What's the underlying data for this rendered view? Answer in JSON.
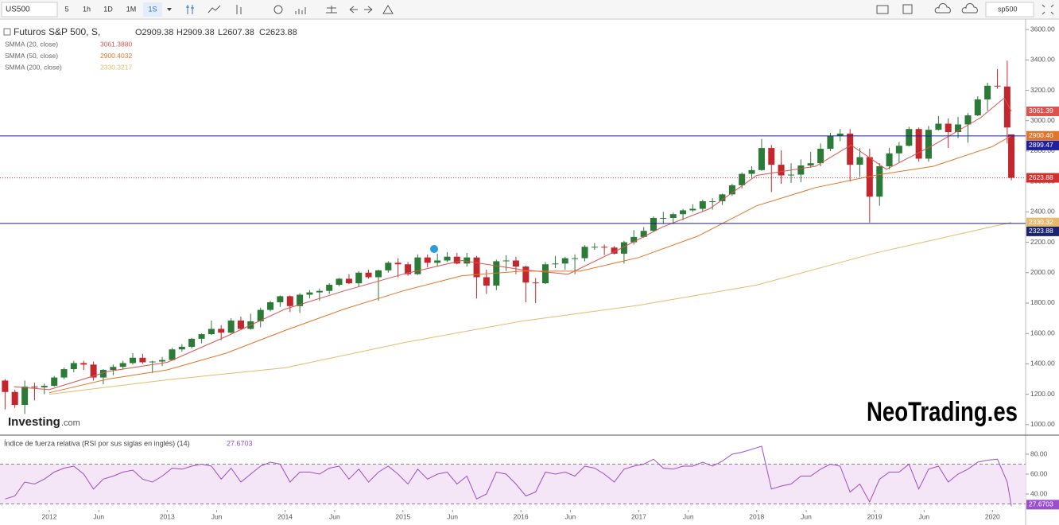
{
  "toolbar": {
    "symbol": "US500",
    "intervals": [
      "5",
      "1h",
      "1D",
      "1M",
      "1S"
    ],
    "search": "sp500"
  },
  "watermarks": {
    "brand": "Investing",
    "brand_suffix": ".com",
    "site": "NeoTrading.es"
  },
  "chart_data": [
    {
      "type": "candlestick",
      "title": "Futuros S&P 500, S,",
      "ohlc_text": [
        "O2909.38",
        "H2909.38",
        "L2607.38",
        "C2623.88"
      ],
      "x": [
        2011.625,
        2011.708,
        2011.792,
        2011.875,
        2011.958,
        2012.042,
        2012.125,
        2012.208,
        2012.292,
        2012.375,
        2012.458,
        2012.542,
        2012.625,
        2012.708,
        2012.792,
        2012.875,
        2012.958,
        2013.042,
        2013.125,
        2013.208,
        2013.292,
        2013.375,
        2013.458,
        2013.542,
        2013.625,
        2013.708,
        2013.792,
        2013.875,
        2013.958,
        2014.042,
        2014.125,
        2014.208,
        2014.292,
        2014.375,
        2014.458,
        2014.542,
        2014.625,
        2014.708,
        2014.792,
        2014.875,
        2014.958,
        2015.042,
        2015.125,
        2015.208,
        2015.292,
        2015.375,
        2015.458,
        2015.542,
        2015.625,
        2015.708,
        2015.792,
        2015.875,
        2015.958,
        2016.042,
        2016.125,
        2016.208,
        2016.292,
        2016.375,
        2016.458,
        2016.542,
        2016.625,
        2016.708,
        2016.792,
        2016.875,
        2016.958,
        2017.042,
        2017.125,
        2017.208,
        2017.292,
        2017.375,
        2017.458,
        2017.542,
        2017.625,
        2017.708,
        2017.792,
        2017.875,
        2017.958,
        2018.042,
        2018.125,
        2018.208,
        2018.292,
        2018.375,
        2018.458,
        2018.542,
        2018.625,
        2018.708,
        2018.792,
        2018.875,
        2018.958,
        2019.042,
        2019.125,
        2019.208,
        2019.292,
        2019.375,
        2019.458,
        2019.542,
        2019.625,
        2019.708,
        2019.792,
        2019.875,
        2019.958,
        2020.042,
        2020.125,
        2020.16
      ],
      "open": [
        1290,
        1215,
        1130,
        1250,
        1245,
        1255,
        1310,
        1365,
        1405,
        1395,
        1310,
        1360,
        1380,
        1405,
        1440,
        1410,
        1415,
        1425,
        1495,
        1512,
        1565,
        1595,
        1630,
        1605,
        1685,
        1630,
        1680,
        1755,
        1805,
        1845,
        1780,
        1855,
        1870,
        1880,
        1920,
        1960,
        1930,
        2000,
        1970,
        2015,
        2065,
        2055,
        1990,
        2100,
        2065,
        2080,
        2105,
        2060,
        2100,
        1970,
        1915,
        2075,
        2080,
        2040,
        1935,
        1930,
        2055,
        2060,
        2095,
        2095,
        2170,
        2170,
        2165,
        2125,
        2200,
        2235,
        2275,
        2360,
        2360,
        2385,
        2410,
        2420,
        2470,
        2470,
        2515,
        2575,
        2650,
        2675,
        2820,
        2710,
        2640,
        2645,
        2705,
        2720,
        2815,
        2900,
        2915,
        2710,
        2760,
        2500,
        2700,
        2785,
        2835,
        2945,
        2750,
        2940,
        2980,
        2925,
        2975,
        3035,
        3140,
        3230,
        3225,
        2909.38
      ],
      "high": [
        1300,
        1230,
        1290,
        1275,
        1270,
        1320,
        1375,
        1420,
        1420,
        1415,
        1365,
        1395,
        1420,
        1470,
        1465,
        1420,
        1445,
        1505,
        1530,
        1570,
        1600,
        1685,
        1655,
        1700,
        1710,
        1730,
        1770,
        1815,
        1850,
        1850,
        1865,
        1885,
        1895,
        1930,
        1965,
        1990,
        2010,
        2020,
        2020,
        2075,
        2095,
        2070,
        2120,
        2120,
        2125,
        2135,
        2130,
        2130,
        2110,
        2020,
        2085,
        2115,
        2105,
        2045,
        1965,
        2070,
        2110,
        2105,
        2120,
        2180,
        2195,
        2185,
        2175,
        2210,
        2280,
        2300,
        2370,
        2400,
        2395,
        2420,
        2450,
        2480,
        2490,
        2520,
        2585,
        2660,
        2700,
        2880,
        2840,
        2805,
        2720,
        2745,
        2795,
        2850,
        2920,
        2945,
        2945,
        2820,
        2815,
        2720,
        2820,
        2860,
        2960,
        2955,
        2965,
        3030,
        3015,
        3025,
        3050,
        3160,
        3250,
        3340,
        3395,
        2909.38
      ],
      "low": [
        1100,
        1110,
        1070,
        1160,
        1200,
        1250,
        1300,
        1345,
        1360,
        1290,
        1265,
        1325,
        1365,
        1395,
        1400,
        1340,
        1385,
        1420,
        1480,
        1500,
        1535,
        1590,
        1555,
        1600,
        1625,
        1625,
        1640,
        1745,
        1775,
        1740,
        1735,
        1830,
        1815,
        1860,
        1910,
        1925,
        1905,
        1960,
        1815,
        2000,
        1970,
        1980,
        1985,
        2035,
        2040,
        2070,
        2055,
        2040,
        1830,
        1860,
        1885,
        2010,
        1990,
        1805,
        1800,
        1925,
        2030,
        2020,
        1990,
        2075,
        2150,
        2115,
        2120,
        2060,
        2185,
        2230,
        2270,
        2320,
        2320,
        2345,
        2400,
        2405,
        2415,
        2445,
        2505,
        2555,
        2625,
        2670,
        2530,
        2585,
        2590,
        2595,
        2690,
        2700,
        2800,
        2865,
        2600,
        2630,
        2330,
        2440,
        2680,
        2725,
        2830,
        2730,
        2730,
        2935,
        2820,
        2885,
        2855,
        3030,
        3065,
        3210,
        2850,
        2607.38
      ],
      "close": [
        1215,
        1130,
        1250,
        1245,
        1255,
        1310,
        1365,
        1405,
        1395,
        1310,
        1360,
        1380,
        1405,
        1440,
        1410,
        1415,
        1425,
        1495,
        1512,
        1565,
        1595,
        1630,
        1605,
        1685,
        1630,
        1680,
        1755,
        1805,
        1845,
        1780,
        1855,
        1870,
        1880,
        1920,
        1960,
        1930,
        2000,
        1970,
        2015,
        2065,
        2055,
        1990,
        2100,
        2065,
        2080,
        2105,
        2060,
        2100,
        1970,
        1915,
        2075,
        2080,
        2040,
        1935,
        1930,
        2055,
        2060,
        2095,
        2095,
        2170,
        2170,
        2165,
        2125,
        2200,
        2235,
        2275,
        2360,
        2360,
        2385,
        2410,
        2420,
        2470,
        2470,
        2515,
        2575,
        2650,
        2675,
        2820,
        2710,
        2640,
        2645,
        2705,
        2720,
        2815,
        2900,
        2915,
        2710,
        2760,
        2500,
        2700,
        2785,
        2835,
        2945,
        2750,
        2940,
        2980,
        2925,
        2975,
        3035,
        3140,
        3230,
        3225,
        2955,
        2623.88
      ],
      "up_color": "#2b7a37",
      "down_color": "#c3272d",
      "price_tag": {
        "value": 2623.88,
        "label": "2623.88",
        "color": "#d32f2f"
      },
      "overlays": [
        {
          "name": "SMMA (20, close)",
          "color": "#d9534f",
          "value_label": "3061.3880",
          "tag": "3061.39",
          "x": [
            2011.7,
            2012.0,
            2012.5,
            2013.0,
            2013.5,
            2014.0,
            2014.5,
            2015.0,
            2015.5,
            2016.0,
            2016.4,
            2016.8,
            2017.2,
            2017.6,
            2018.0,
            2018.5,
            2018.8,
            2019.1,
            2019.5,
            2019.9,
            2020.1,
            2020.16
          ],
          "values": [
            1250,
            1230,
            1350,
            1410,
            1580,
            1760,
            1880,
            1990,
            2080,
            2020,
            1990,
            2140,
            2300,
            2420,
            2640,
            2700,
            2840,
            2680,
            2840,
            3020,
            3150,
            3061.388
          ]
        },
        {
          "name": "SMMA (50, close)",
          "color": "#e0762a",
          "value_label": "2900.4032",
          "tag": "2900.40",
          "x": [
            2012.0,
            2012.5,
            2013.0,
            2013.5,
            2014.0,
            2014.5,
            2015.0,
            2015.5,
            2016.0,
            2016.5,
            2017.0,
            2017.5,
            2018.0,
            2018.5,
            2019.0,
            2019.5,
            2020.0,
            2020.16
          ],
          "values": [
            1210,
            1300,
            1360,
            1470,
            1620,
            1760,
            1880,
            1980,
            2010,
            2010,
            2100,
            2240,
            2440,
            2560,
            2640,
            2700,
            2830,
            2900.4032
          ]
        },
        {
          "name": "SMMA (200, close)",
          "color": "#e8b96a",
          "value_label": "2330.3217",
          "tag": "2330.32",
          "x": [
            2012.0,
            2013.0,
            2014.0,
            2015.0,
            2016.0,
            2017.0,
            2018.0,
            2019.0,
            2020.0,
            2020.16
          ],
          "values": [
            1200,
            1295,
            1374,
            1538,
            1680,
            1786,
            1918,
            2128,
            2303,
            2330.3217
          ]
        }
      ],
      "hlines": [
        {
          "value": 2899.47,
          "label": "2899.47",
          "color": "#1f1fa0"
        },
        {
          "value": 2323.88,
          "label": "2323.88",
          "color": "#1a2370"
        }
      ],
      "xlim": [
        2011.582,
        2020.281
      ],
      "ylim": [
        931,
        3658
      ],
      "yticks": [
        {
          "value": 1000,
          "label": "1000.00"
        },
        {
          "value": 1200,
          "label": "1200.00"
        },
        {
          "value": 1400,
          "label": "1400.00"
        },
        {
          "value": 1600,
          "label": "1600.00"
        },
        {
          "value": 1800,
          "label": "1800.00"
        },
        {
          "value": 2000,
          "label": "2000.00"
        },
        {
          "value": 2200,
          "label": "2200.00"
        },
        {
          "value": 2400,
          "label": "2400.00"
        },
        {
          "value": 2600,
          "label": "2600.00"
        },
        {
          "value": 2800,
          "label": "2800.00"
        },
        {
          "value": 3000,
          "label": "3000.00"
        },
        {
          "value": 3200,
          "label": "3200.00"
        },
        {
          "value": 3400,
          "label": "3400.00"
        },
        {
          "value": 3600,
          "label": "3600.00"
        }
      ]
    },
    {
      "type": "line",
      "title": "Índice de fuerza relativa (RSI por sus siglas en inglés) (14)",
      "value_label": "27.6703",
      "color": "#9c4dcc",
      "band": [
        30,
        70
      ],
      "band_color": "#f4e6f7",
      "x": [
        2011.625,
        2011.708,
        2011.792,
        2011.875,
        2011.958,
        2012.042,
        2012.125,
        2012.208,
        2012.292,
        2012.375,
        2012.458,
        2012.542,
        2012.625,
        2012.708,
        2012.792,
        2012.875,
        2012.958,
        2013.042,
        2013.125,
        2013.208,
        2013.292,
        2013.375,
        2013.458,
        2013.542,
        2013.625,
        2013.708,
        2013.792,
        2013.875,
        2013.958,
        2014.042,
        2014.125,
        2014.208,
        2014.292,
        2014.375,
        2014.458,
        2014.542,
        2014.625,
        2014.708,
        2014.792,
        2014.875,
        2014.958,
        2015.042,
        2015.125,
        2015.208,
        2015.292,
        2015.375,
        2015.458,
        2015.542,
        2015.625,
        2015.708,
        2015.792,
        2015.875,
        2015.958,
        2016.042,
        2016.125,
        2016.208,
        2016.292,
        2016.375,
        2016.458,
        2016.542,
        2016.625,
        2016.708,
        2016.792,
        2016.875,
        2016.958,
        2017.042,
        2017.125,
        2017.208,
        2017.292,
        2017.375,
        2017.458,
        2017.542,
        2017.625,
        2017.708,
        2017.792,
        2017.875,
        2017.958,
        2018.042,
        2018.125,
        2018.208,
        2018.292,
        2018.375,
        2018.458,
        2018.542,
        2018.625,
        2018.708,
        2018.792,
        2018.875,
        2018.958,
        2019.042,
        2019.125,
        2019.208,
        2019.292,
        2019.375,
        2019.458,
        2019.542,
        2019.625,
        2019.708,
        2019.792,
        2019.875,
        2019.958,
        2020.042,
        2020.125,
        2020.16
      ],
      "values": [
        35,
        38,
        52,
        50,
        55,
        62,
        66,
        68,
        60,
        45,
        55,
        58,
        62,
        64,
        55,
        52,
        58,
        66,
        65,
        68,
        70,
        68,
        55,
        66,
        52,
        60,
        68,
        72,
        70,
        52,
        62,
        62,
        60,
        66,
        68,
        55,
        65,
        52,
        62,
        68,
        60,
        50,
        65,
        55,
        60,
        62,
        50,
        58,
        35,
        40,
        62,
        60,
        50,
        38,
        42,
        62,
        60,
        62,
        58,
        68,
        66,
        60,
        52,
        65,
        68,
        70,
        75,
        66,
        65,
        68,
        68,
        72,
        68,
        73,
        80,
        82,
        85,
        88,
        45,
        48,
        50,
        58,
        58,
        65,
        70,
        68,
        42,
        50,
        32,
        55,
        62,
        62,
        70,
        45,
        65,
        68,
        52,
        60,
        65,
        72,
        74,
        75,
        52,
        27.6703
      ],
      "xlim": [
        2011.582,
        2020.281
      ],
      "ylim": [
        24.8,
        98.4
      ],
      "yticks": [
        {
          "value": 40,
          "label": "40.00"
        },
        {
          "value": 60,
          "label": "60.00"
        },
        {
          "value": 80,
          "label": "80.00"
        }
      ],
      "xticks": [
        2012,
        {
          "value": 2012.42,
          "label": "Jun"
        },
        2013,
        {
          "value": 2013.42,
          "label": "Jun"
        },
        2014,
        {
          "value": 2014.42,
          "label": "Jun"
        },
        2015,
        {
          "value": 2015.42,
          "label": "Jun"
        },
        2016,
        {
          "value": 2016.42,
          "label": "Jun"
        },
        2017,
        {
          "value": 2017.42,
          "label": "Jun"
        },
        2018,
        {
          "value": 2018.42,
          "label": "Jun"
        },
        2019,
        {
          "value": 2019.42,
          "label": "Jun"
        },
        2020
      ]
    }
  ]
}
